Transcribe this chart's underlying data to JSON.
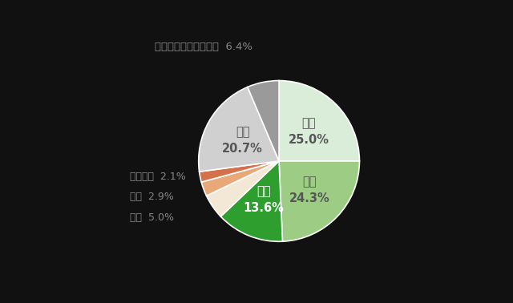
{
  "labels": [
    "１校",
    "２校",
    "３校",
    "４校",
    "５校",
    "６校以上",
    "未定",
    "参加しようと思わない"
  ],
  "values": [
    25.0,
    24.3,
    13.6,
    5.0,
    2.9,
    2.1,
    20.7,
    6.4
  ],
  "colors": [
    "#d9edd9",
    "#9dcc85",
    "#2e9e2e",
    "#f2e8d5",
    "#e8a878",
    "#d4714a",
    "#d0d0d0",
    "#9a9a9a"
  ],
  "background_color": "#111111",
  "text_color_inner": "#555555",
  "text_color_outer": "#888888",
  "text_color_3": "#ffffff",
  "startangle": 90
}
